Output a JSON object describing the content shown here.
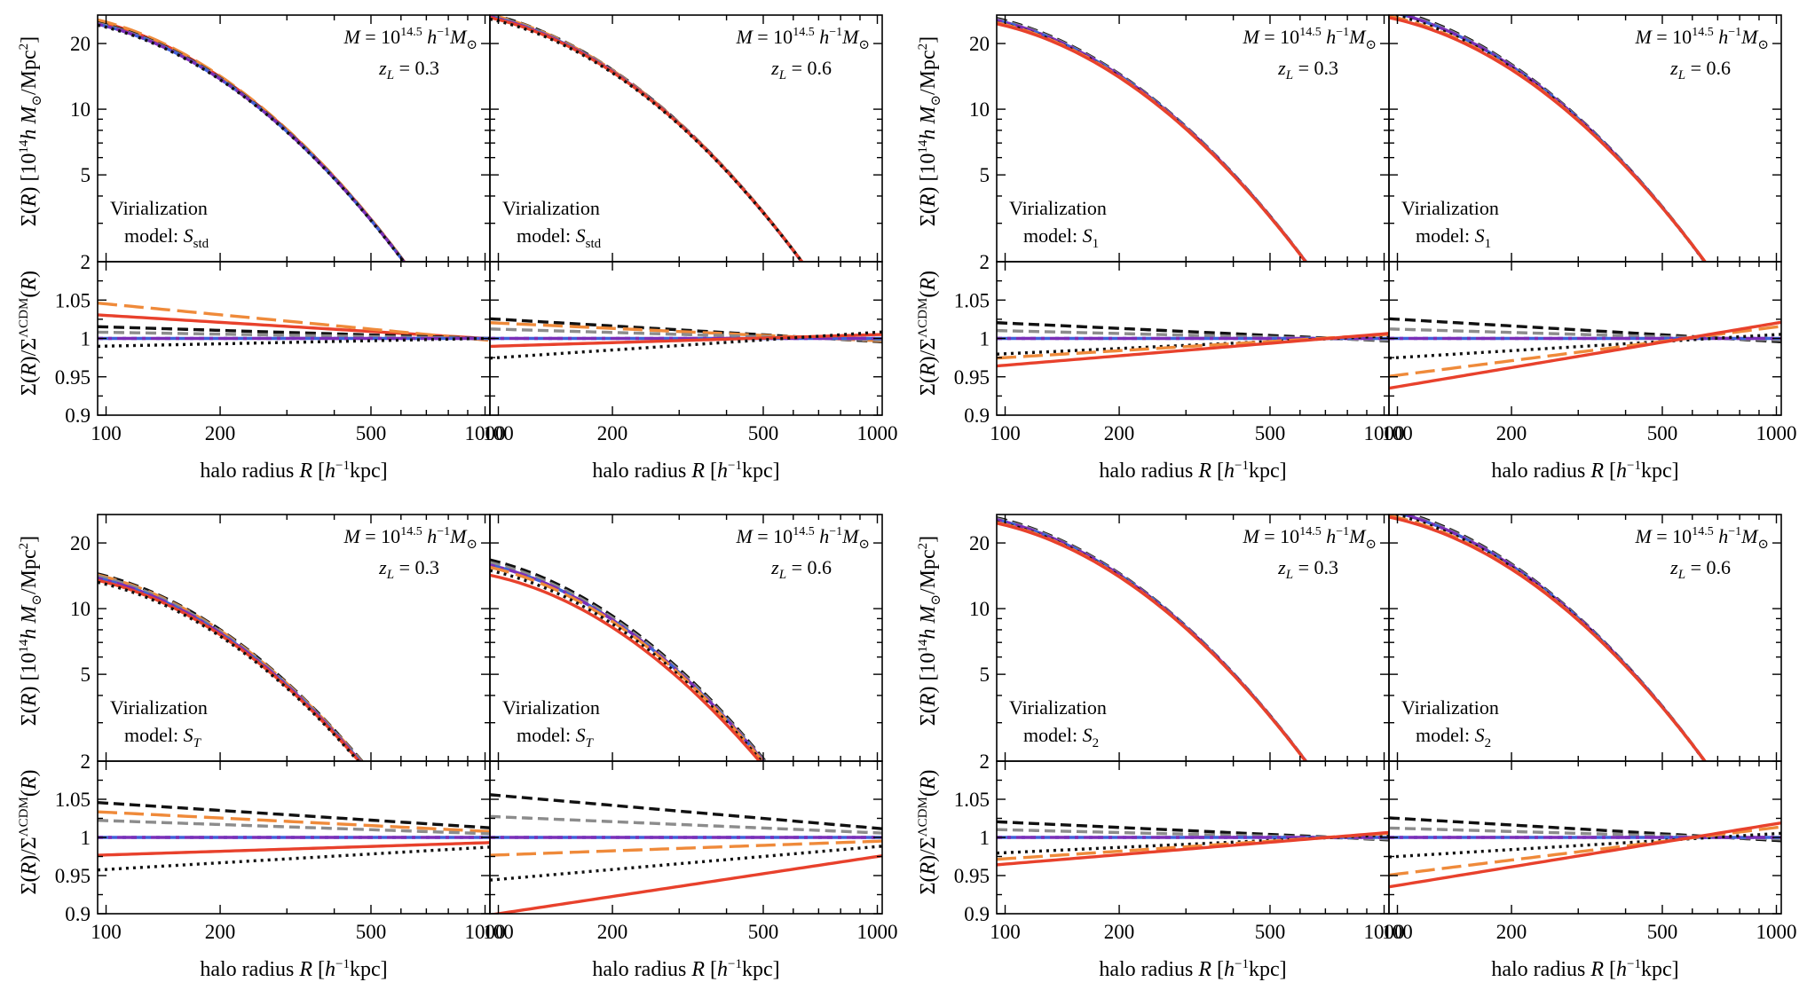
{
  "figure": {
    "xlabel_parts": {
      "pre": "halo radius ",
      "var": "R",
      "open": " [",
      "h": "h",
      "sup": "−1",
      "post": "kpc]"
    },
    "ylabel_top_parts": {
      "sym": "Σ(",
      "var": "R",
      "mid": ")  [10",
      "sup": "14",
      "h": "h M",
      "sub": "⊙",
      "post": "/Mpc",
      "sup2": "2",
      "end": "]"
    },
    "ylabel_bottom_parts": {
      "sym": "Σ(",
      "var": "R",
      "mid": ")/Σ",
      "sup": "ΛCDM",
      "post": "(",
      "var2": "R",
      "end": ")"
    },
    "mass_label_parts": {
      "pre": "M",
      "eq": " = 10",
      "sup": "14.5",
      "h": " h",
      "sup2": "−1",
      "m": "M",
      "sub": "⊙"
    },
    "virialization_label": "Virialization",
    "model_prefix": "model: ",
    "xticks": [
      100,
      200,
      500,
      1000
    ],
    "xtick_labels": [
      "100",
      "200",
      "500",
      "1000"
    ],
    "top_yticks": [
      2,
      5,
      10,
      20
    ],
    "top_ytick_labels": [
      "2",
      "5",
      "10",
      "20"
    ],
    "bottom_yticks": [
      0.9,
      0.95,
      1.0,
      1.05
    ],
    "bottom_ytick_labels": [
      "0.9",
      "0.95",
      "1",
      "1.05"
    ],
    "xlim": [
      95,
      1030
    ],
    "top_ylim": [
      2,
      27
    ],
    "bottom_ylim": [
      0.9,
      1.1
    ],
    "zL_values": [
      "0.3",
      "0.6"
    ],
    "colors": {
      "red": "#e8412c",
      "orange": "#ef8a3a",
      "gray": "#8c8c8c",
      "black": "#111111",
      "blue": "#4060d8",
      "purple": "#7a2fb8"
    }
  },
  "chart_data": [
    {
      "type": "line",
      "group": "S_std",
      "model": "S",
      "model_sub": "std",
      "panels": [
        {
          "zL": "0.3",
          "sigma_100": 24.0,
          "sigma_slope": 2.45,
          "series": [
            {
              "name": "red solid",
              "ratio_100": 1.03,
              "ratio_1000": 1.0
            },
            {
              "name": "orange long-dash",
              "ratio_100": 1.045,
              "ratio_1000": 0.998
            },
            {
              "name": "black dashed",
              "ratio_100": 1.015,
              "ratio_1000": 1.0
            },
            {
              "name": "gray dashed",
              "ratio_100": 1.008,
              "ratio_1000": 1.0
            },
            {
              "name": "blue/purple dash-dot",
              "ratio_100": 1.0,
              "ratio_1000": 1.0
            },
            {
              "name": "black dotted",
              "ratio_100": 0.99,
              "ratio_1000": 1.0
            }
          ]
        },
        {
          "zL": "0.6",
          "sigma_100": 26.0,
          "sigma_slope": 2.45,
          "series": [
            {
              "name": "black dashed",
              "ratio_100": 1.025,
              "ratio_1000": 0.996
            },
            {
              "name": "orange long-dash",
              "ratio_100": 1.02,
              "ratio_1000": 0.997
            },
            {
              "name": "gray dashed",
              "ratio_100": 1.012,
              "ratio_1000": 0.998
            },
            {
              "name": "blue/purple dash-dot",
              "ratio_100": 1.0,
              "ratio_1000": 1.0
            },
            {
              "name": "red solid",
              "ratio_100": 0.99,
              "ratio_1000": 1.005
            },
            {
              "name": "black dotted",
              "ratio_100": 0.975,
              "ratio_1000": 1.008
            }
          ]
        }
      ]
    },
    {
      "type": "line",
      "group": "S1",
      "model": "S",
      "model_sub": "1",
      "panels": [
        {
          "zL": "0.3",
          "sigma_100": 25.0,
          "sigma_slope": 2.45,
          "series": [
            {
              "name": "black dashed",
              "ratio_100": 1.02,
              "ratio_1000": 0.997
            },
            {
              "name": "gray dashed",
              "ratio_100": 1.01,
              "ratio_1000": 0.998
            },
            {
              "name": "blue/purple dash-dot",
              "ratio_100": 1.0,
              "ratio_1000": 1.0
            },
            {
              "name": "black dotted",
              "ratio_100": 0.98,
              "ratio_1000": 1.003
            },
            {
              "name": "orange long-dash",
              "ratio_100": 0.975,
              "ratio_1000": 1.005
            },
            {
              "name": "red solid",
              "ratio_100": 0.965,
              "ratio_1000": 1.006
            }
          ]
        },
        {
          "zL": "0.6",
          "sigma_100": 27.5,
          "sigma_slope": 2.45,
          "series": [
            {
              "name": "black dashed",
              "ratio_100": 1.025,
              "ratio_1000": 0.996
            },
            {
              "name": "gray dashed",
              "ratio_100": 1.012,
              "ratio_1000": 0.998
            },
            {
              "name": "blue/purple dash-dot",
              "ratio_100": 1.0,
              "ratio_1000": 1.0
            },
            {
              "name": "black dotted",
              "ratio_100": 0.975,
              "ratio_1000": 1.005
            },
            {
              "name": "orange long-dash",
              "ratio_100": 0.952,
              "ratio_1000": 1.015
            },
            {
              "name": "red solid",
              "ratio_100": 0.937,
              "ratio_1000": 1.02
            }
          ]
        }
      ]
    },
    {
      "type": "line",
      "group": "ST",
      "model": "S",
      "model_sub": "T",
      "panels": [
        {
          "zL": "0.3",
          "sigma_100": 13.5,
          "sigma_slope": 2.45,
          "series": [
            {
              "name": "black dashed",
              "ratio_100": 1.045,
              "ratio_1000": 1.013
            },
            {
              "name": "orange long-dash",
              "ratio_100": 1.033,
              "ratio_1000": 1.008
            },
            {
              "name": "gray dashed",
              "ratio_100": 1.022,
              "ratio_1000": 1.005
            },
            {
              "name": "blue/purple dash-dot",
              "ratio_100": 1.0,
              "ratio_1000": 1.0
            },
            {
              "name": "red solid",
              "ratio_100": 0.977,
              "ratio_1000": 0.993
            },
            {
              "name": "black dotted",
              "ratio_100": 0.958,
              "ratio_1000": 0.987
            }
          ]
        },
        {
          "zL": "0.6",
          "sigma_100": 15.5,
          "sigma_slope": 2.45,
          "series": [
            {
              "name": "black dashed",
              "ratio_100": 1.055,
              "ratio_1000": 1.012
            },
            {
              "name": "gray dashed",
              "ratio_100": 1.027,
              "ratio_1000": 1.006
            },
            {
              "name": "blue/purple dash-dot",
              "ratio_100": 1.0,
              "ratio_1000": 1.0
            },
            {
              "name": "orange long-dash",
              "ratio_100": 0.977,
              "ratio_1000": 0.995
            },
            {
              "name": "black dotted",
              "ratio_100": 0.945,
              "ratio_1000": 0.988
            },
            {
              "name": "red solid",
              "ratio_100": 0.9,
              "ratio_1000": 0.975
            }
          ]
        }
      ]
    },
    {
      "type": "line",
      "group": "S2",
      "model": "S",
      "model_sub": "2",
      "panels": [
        {
          "zL": "0.3",
          "sigma_100": 25.0,
          "sigma_slope": 2.45,
          "series": [
            {
              "name": "black dashed",
              "ratio_100": 1.02,
              "ratio_1000": 0.997
            },
            {
              "name": "gray dashed",
              "ratio_100": 1.01,
              "ratio_1000": 0.998
            },
            {
              "name": "blue/purple dash-dot",
              "ratio_100": 1.0,
              "ratio_1000": 1.0
            },
            {
              "name": "black dotted",
              "ratio_100": 0.98,
              "ratio_1000": 1.003
            },
            {
              "name": "orange long-dash",
              "ratio_100": 0.972,
              "ratio_1000": 1.005
            },
            {
              "name": "red solid",
              "ratio_100": 0.965,
              "ratio_1000": 1.006
            }
          ]
        },
        {
          "zL": "0.6",
          "sigma_100": 27.5,
          "sigma_slope": 2.45,
          "series": [
            {
              "name": "black dashed",
              "ratio_100": 1.025,
              "ratio_1000": 0.996
            },
            {
              "name": "gray dashed",
              "ratio_100": 1.012,
              "ratio_1000": 0.998
            },
            {
              "name": "blue/purple dash-dot",
              "ratio_100": 1.0,
              "ratio_1000": 1.0
            },
            {
              "name": "black dotted",
              "ratio_100": 0.975,
              "ratio_1000": 1.005
            },
            {
              "name": "orange long-dash",
              "ratio_100": 0.952,
              "ratio_1000": 1.013
            },
            {
              "name": "red solid",
              "ratio_100": 0.937,
              "ratio_1000": 1.018
            }
          ]
        }
      ]
    }
  ]
}
